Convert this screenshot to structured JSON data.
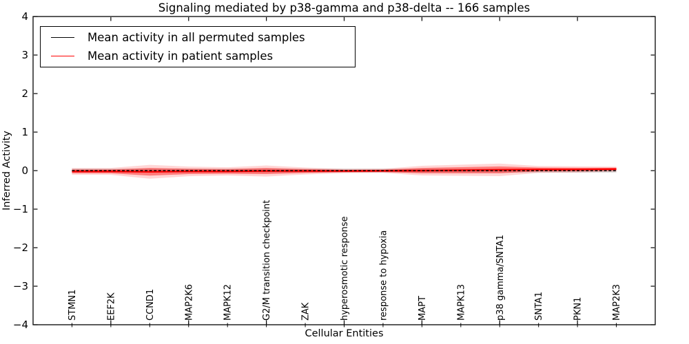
{
  "title": "Signaling mediated by p38-gamma and p38-delta -- 166 samples",
  "legend": {
    "items": [
      {
        "label": "Mean activity in all permuted samples",
        "color": "#000000"
      },
      {
        "label": "Mean activity in patient samples",
        "color": "#ff0000"
      }
    ]
  },
  "chart_data": {
    "type": "line",
    "title": "Signaling mediated by p38-gamma and p38-delta -- 166 samples",
    "xlabel": "Cellular Entities",
    "ylabel": "Inferred Activity",
    "ylim": [
      -4,
      4
    ],
    "xlim": [
      0,
      16
    ],
    "grid": false,
    "legend_position": "upper left",
    "ytick_values": [
      4,
      3,
      2,
      1,
      0,
      -1,
      -2,
      -3,
      -4
    ],
    "ytick_labels": [
      "4",
      "3",
      "2",
      "1",
      "0",
      "−1",
      "−2",
      "−3",
      "−4"
    ],
    "xtick_values": [
      2,
      4,
      6,
      8,
      10,
      12,
      14
    ],
    "categories": [
      "STMN1",
      "EEF2K",
      "CCND1",
      "MAP2K6",
      "MAPK12",
      "G2/M transition checkpoint",
      "ZAK",
      "hyperosmotic response",
      "response to hypoxia",
      "MAPT",
      "MAPK13",
      "p38 gamma/SNTA1",
      "SNTA1",
      "PKN1",
      "MAP2K3"
    ],
    "x": [
      1,
      2,
      3,
      4,
      5,
      6,
      7,
      8,
      9,
      10,
      11,
      12,
      13,
      14,
      15
    ],
    "series": [
      {
        "name": "Mean activity in all permuted samples",
        "color": "#000000",
        "linestyle": "dashed",
        "values": [
          0,
          0,
          0,
          0,
          0,
          0,
          0,
          0,
          0,
          0,
          0,
          0,
          0,
          0,
          0
        ],
        "band": [
          0.05,
          0.05,
          0.05,
          0.05,
          0.05,
          0.05,
          0.05,
          0.05,
          0.05,
          0.05,
          0.05,
          0.05,
          0.05,
          0.05,
          0.05
        ],
        "band_color": "#000000"
      },
      {
        "name": "Mean activity in patient samples",
        "color": "#ff0000",
        "linestyle": "solid",
        "values": [
          -0.02,
          -0.02,
          -0.03,
          -0.02,
          -0.02,
          -0.01,
          -0.01,
          -0.01,
          -0.005,
          0.0,
          0.01,
          0.02,
          0.03,
          0.03,
          0.04
        ],
        "band": [
          0.05,
          0.05,
          0.1,
          0.07,
          0.06,
          0.08,
          0.05,
          0.03,
          0.03,
          0.07,
          0.08,
          0.09,
          0.05,
          0.045,
          0.035
        ],
        "band_color": "#ff0000"
      }
    ]
  }
}
